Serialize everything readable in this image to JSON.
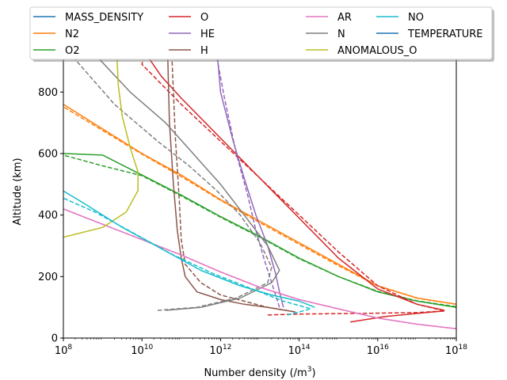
{
  "chart_data": {
    "type": "line",
    "xlabel": "Number density (/m",
    "xlabel_sup": "3",
    "xlabel_end": ")",
    "ylabel": "Altitude (km)",
    "xscale": "log",
    "xlim_exp": [
      8,
      18
    ],
    "ylim": [
      0,
      950
    ],
    "xticks": [
      {
        "base": "10",
        "exp": "8",
        "e": 8
      },
      {
        "base": "10",
        "exp": "10",
        "e": 10
      },
      {
        "base": "10",
        "exp": "12",
        "e": 12
      },
      {
        "base": "10",
        "exp": "14",
        "e": 14
      },
      {
        "base": "10",
        "exp": "16",
        "e": 16
      },
      {
        "base": "10",
        "exp": "18",
        "e": 18
      }
    ],
    "yticks": [
      {
        "label": "0",
        "v": 0
      },
      {
        "label": "200",
        "v": 200
      },
      {
        "label": "400",
        "v": 400
      },
      {
        "label": "600",
        "v": 600
      },
      {
        "label": "800",
        "v": 800
      }
    ],
    "legend": {
      "location": "top-center, above plot",
      "columns": 4,
      "entries": [
        {
          "name": "MASS_DENSITY",
          "color": "#1f77b4"
        },
        {
          "name": "N2",
          "color": "#ff7f0e"
        },
        {
          "name": "O2",
          "color": "#2ca02c"
        },
        {
          "name": "O",
          "color": "#d62728"
        },
        {
          "name": "HE",
          "color": "#9467bd"
        },
        {
          "name": "H",
          "color": "#8c564b"
        },
        {
          "name": "AR",
          "color": "#e377c2"
        },
        {
          "name": "N",
          "color": "#7f7f7f"
        },
        {
          "name": "ANOMALOUS_O",
          "color": "#bcbd22"
        },
        {
          "name": "NO",
          "color": "#17becf"
        },
        {
          "name": "TEMPERATURE",
          "color": "#1f77b4"
        }
      ]
    },
    "series": [
      {
        "name": "N2",
        "style": "solid",
        "color": "#ff7f0e",
        "points": [
          [
            18,
            110
          ],
          [
            17,
            130
          ],
          [
            16,
            170
          ],
          [
            15,
            240
          ],
          [
            14,
            310
          ],
          [
            13,
            380
          ],
          [
            12,
            450
          ],
          [
            11,
            530
          ],
          [
            10,
            600
          ],
          [
            9,
            680
          ],
          [
            8,
            760
          ]
        ]
      },
      {
        "name": "N2",
        "style": "dashed",
        "color": "#ff7f0e",
        "points": [
          [
            18,
            110
          ],
          [
            17,
            130
          ],
          [
            16,
            170
          ],
          [
            15,
            235
          ],
          [
            14,
            305
          ],
          [
            13,
            375
          ],
          [
            12,
            448
          ],
          [
            11,
            525
          ],
          [
            10,
            598
          ],
          [
            9,
            675
          ],
          [
            8,
            752
          ]
        ]
      },
      {
        "name": "O2",
        "style": "solid",
        "color": "#2ca02c",
        "points": [
          [
            18,
            100
          ],
          [
            17,
            120
          ],
          [
            16,
            150
          ],
          [
            15,
            200
          ],
          [
            14,
            260
          ],
          [
            13,
            330
          ],
          [
            12,
            395
          ],
          [
            11,
            465
          ],
          [
            10,
            530
          ],
          [
            9,
            595
          ],
          [
            8,
            600
          ]
        ]
      },
      {
        "name": "O2",
        "style": "dashed",
        "color": "#2ca02c",
        "points": [
          [
            18,
            102
          ],
          [
            17,
            121
          ],
          [
            16,
            152
          ],
          [
            15,
            200
          ],
          [
            14,
            258
          ],
          [
            13,
            328
          ],
          [
            12,
            393
          ],
          [
            11,
            462
          ],
          [
            10,
            528
          ],
          [
            9,
            560
          ],
          [
            8,
            595
          ]
        ]
      },
      {
        "name": "O",
        "style": "solid",
        "color": "#d62728",
        "points": [
          [
            17.7,
            90
          ],
          [
            17,
            110
          ],
          [
            16,
            160
          ],
          [
            15,
            260
          ],
          [
            14,
            390
          ],
          [
            13,
            520
          ],
          [
            12,
            650
          ],
          [
            11,
            780
          ],
          [
            10.5,
            850
          ],
          [
            9.96,
            950
          ]
        ]
      },
      {
        "name": "O",
        "style": "dashed",
        "color": "#d62728",
        "points": [
          [
            13.2,
            75
          ],
          [
            14,
            78
          ],
          [
            15.5,
            80
          ],
          [
            17,
            83
          ],
          [
            17.7,
            88
          ],
          [
            17,
            110
          ],
          [
            16,
            170
          ],
          [
            15,
            280
          ],
          [
            14,
            400
          ],
          [
            13,
            520
          ],
          [
            12,
            640
          ],
          [
            11,
            760
          ],
          [
            10,
            890
          ],
          [
            10.1,
            950
          ]
        ]
      },
      {
        "name": "O",
        "style": "solid",
        "color": "#d62728",
        "points": [
          [
            15.3,
            52
          ],
          [
            16.2,
            70
          ],
          [
            17,
            80
          ],
          [
            17.7,
            88
          ]
        ]
      },
      {
        "name": "HE",
        "style": "solid",
        "color": "#9467bd",
        "points": [
          [
            13.6,
            100
          ],
          [
            13.5,
            150
          ],
          [
            13.4,
            210
          ],
          [
            13.2,
            300
          ],
          [
            12.9,
            400
          ],
          [
            12.6,
            520
          ],
          [
            12.3,
            650
          ],
          [
            12.0,
            800
          ],
          [
            11.9,
            950
          ]
        ]
      },
      {
        "name": "HE",
        "style": "dashed",
        "color": "#9467bd",
        "points": [
          [
            13.5,
            100
          ],
          [
            13.3,
            180
          ],
          [
            13.1,
            260
          ],
          [
            12.9,
            350
          ],
          [
            12.7,
            460
          ],
          [
            12.4,
            600
          ],
          [
            12.1,
            780
          ],
          [
            11.85,
            950
          ]
        ]
      },
      {
        "name": "H",
        "style": "solid",
        "color": "#8c564b",
        "points": [
          [
            13.9,
            85
          ],
          [
            13.2,
            100
          ],
          [
            12.6,
            110
          ],
          [
            12.0,
            125
          ],
          [
            11.4,
            150
          ],
          [
            11.1,
            200
          ],
          [
            11.0,
            260
          ],
          [
            10.9,
            350
          ],
          [
            10.8,
            500
          ],
          [
            10.7,
            700
          ],
          [
            10.65,
            950
          ]
        ]
      },
      {
        "name": "H",
        "style": "dashed",
        "color": "#8c564b",
        "points": [
          [
            13.9,
            85
          ],
          [
            13.2,
            100
          ],
          [
            12.6,
            120
          ],
          [
            12.0,
            140
          ],
          [
            11.5,
            180
          ],
          [
            11.1,
            240
          ],
          [
            11.0,
            320
          ],
          [
            10.95,
            450
          ],
          [
            10.85,
            650
          ],
          [
            10.75,
            950
          ]
        ]
      },
      {
        "name": "N",
        "style": "solid",
        "color": "#7f7f7f",
        "points": [
          [
            10.6,
            90
          ],
          [
            11.5,
            100
          ],
          [
            12.5,
            130
          ],
          [
            13.3,
            180
          ],
          [
            13.5,
            220
          ],
          [
            13.2,
            300
          ],
          [
            12.6,
            400
          ],
          [
            12.0,
            500
          ],
          [
            11.3,
            600
          ],
          [
            10.6,
            700
          ],
          [
            9.7,
            800
          ],
          [
            8.6,
            950
          ]
        ]
      },
      {
        "name": "N",
        "style": "dashed",
        "color": "#7f7f7f",
        "points": [
          [
            10.4,
            90
          ],
          [
            11.4,
            100
          ],
          [
            12.4,
            130
          ],
          [
            13.2,
            180
          ],
          [
            13.3,
            230
          ],
          [
            13.0,
            310
          ],
          [
            12.5,
            400
          ],
          [
            11.9,
            480
          ],
          [
            11.2,
            560
          ],
          [
            10.4,
            640
          ],
          [
            9.3,
            760
          ],
          [
            8.0,
            950
          ]
        ]
      },
      {
        "name": "AR",
        "style": "solid",
        "color": "#e377c2",
        "points": [
          [
            18,
            30
          ],
          [
            17,
            45
          ],
          [
            16,
            65
          ],
          [
            15,
            95
          ],
          [
            14,
            125
          ],
          [
            13,
            165
          ],
          [
            12,
            215
          ],
          [
            11,
            270
          ],
          [
            10,
            320
          ],
          [
            9,
            370
          ],
          [
            8,
            420
          ]
        ]
      },
      {
        "name": "AR",
        "style": "dashed",
        "color": "#e377c2",
        "points": [
          [
            18,
            30
          ],
          [
            17,
            45
          ],
          [
            16,
            65
          ],
          [
            15,
            95
          ],
          [
            14,
            125
          ],
          [
            13,
            165
          ],
          [
            12,
            215
          ],
          [
            11,
            270
          ],
          [
            10,
            320
          ],
          [
            9,
            370
          ],
          [
            8,
            420
          ]
        ]
      },
      {
        "name": "ANOMALOUS_O",
        "style": "solid",
        "color": "#bcbd22",
        "points": [
          [
            8,
            328
          ],
          [
            9,
            360
          ],
          [
            9.6,
            410
          ],
          [
            9.9,
            480
          ],
          [
            9.9,
            540
          ],
          [
            9.7,
            620
          ],
          [
            9.5,
            720
          ],
          [
            9.4,
            820
          ],
          [
            9.35,
            950
          ]
        ]
      },
      {
        "name": "NO",
        "style": "solid",
        "color": "#17becf",
        "points": [
          [
            14.4,
            100
          ],
          [
            14.0,
            120
          ],
          [
            13.3,
            140
          ],
          [
            12.5,
            170
          ],
          [
            11.5,
            220
          ],
          [
            10.5,
            290
          ],
          [
            9.5,
            360
          ],
          [
            8.5,
            440
          ],
          [
            8,
            478
          ]
        ]
      },
      {
        "name": "NO",
        "style": "dashed",
        "color": "#17becf",
        "points": [
          [
            13.7,
            75
          ],
          [
            14.3,
            95
          ],
          [
            13.6,
            120
          ],
          [
            12.8,
            160
          ],
          [
            11.8,
            210
          ],
          [
            10.8,
            270
          ],
          [
            9.8,
            340
          ],
          [
            8.8,
            410
          ],
          [
            8,
            455
          ]
        ]
      }
    ]
  }
}
